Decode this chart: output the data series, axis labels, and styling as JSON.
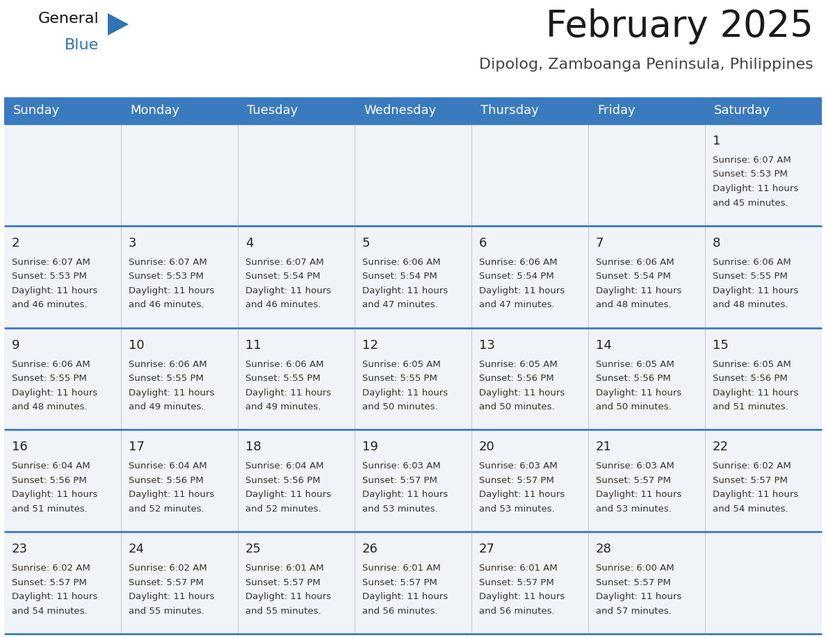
{
  "title": "February 2025",
  "subtitle": "Dipolog, Zamboanga Peninsula, Philippines",
  "days_of_week": [
    "Sunday",
    "Monday",
    "Tuesday",
    "Wednesday",
    "Thursday",
    "Friday",
    "Saturday"
  ],
  "header_bg": "#3a7abf",
  "header_text": "#FFFFFF",
  "divider_color": "#3a7abf",
  "cell_bg": "#f0f3f7",
  "cell_text_color": "#333333",
  "calendar_data": [
    [
      null,
      null,
      null,
      null,
      null,
      null,
      {
        "day": 1,
        "sunrise": "6:07 AM",
        "sunset": "5:53 PM",
        "daylight": "11 hours and 45 minutes."
      }
    ],
    [
      {
        "day": 2,
        "sunrise": "6:07 AM",
        "sunset": "5:53 PM",
        "daylight": "11 hours and 46 minutes."
      },
      {
        "day": 3,
        "sunrise": "6:07 AM",
        "sunset": "5:53 PM",
        "daylight": "11 hours and 46 minutes."
      },
      {
        "day": 4,
        "sunrise": "6:07 AM",
        "sunset": "5:54 PM",
        "daylight": "11 hours and 46 minutes."
      },
      {
        "day": 5,
        "sunrise": "6:06 AM",
        "sunset": "5:54 PM",
        "daylight": "11 hours and 47 minutes."
      },
      {
        "day": 6,
        "sunrise": "6:06 AM",
        "sunset": "5:54 PM",
        "daylight": "11 hours and 47 minutes."
      },
      {
        "day": 7,
        "sunrise": "6:06 AM",
        "sunset": "5:54 PM",
        "daylight": "11 hours and 48 minutes."
      },
      {
        "day": 8,
        "sunrise": "6:06 AM",
        "sunset": "5:55 PM",
        "daylight": "11 hours and 48 minutes."
      }
    ],
    [
      {
        "day": 9,
        "sunrise": "6:06 AM",
        "sunset": "5:55 PM",
        "daylight": "11 hours and 48 minutes."
      },
      {
        "day": 10,
        "sunrise": "6:06 AM",
        "sunset": "5:55 PM",
        "daylight": "11 hours and 49 minutes."
      },
      {
        "day": 11,
        "sunrise": "6:06 AM",
        "sunset": "5:55 PM",
        "daylight": "11 hours and 49 minutes."
      },
      {
        "day": 12,
        "sunrise": "6:05 AM",
        "sunset": "5:55 PM",
        "daylight": "11 hours and 50 minutes."
      },
      {
        "day": 13,
        "sunrise": "6:05 AM",
        "sunset": "5:56 PM",
        "daylight": "11 hours and 50 minutes."
      },
      {
        "day": 14,
        "sunrise": "6:05 AM",
        "sunset": "5:56 PM",
        "daylight": "11 hours and 50 minutes."
      },
      {
        "day": 15,
        "sunrise": "6:05 AM",
        "sunset": "5:56 PM",
        "daylight": "11 hours and 51 minutes."
      }
    ],
    [
      {
        "day": 16,
        "sunrise": "6:04 AM",
        "sunset": "5:56 PM",
        "daylight": "11 hours and 51 minutes."
      },
      {
        "day": 17,
        "sunrise": "6:04 AM",
        "sunset": "5:56 PM",
        "daylight": "11 hours and 52 minutes."
      },
      {
        "day": 18,
        "sunrise": "6:04 AM",
        "sunset": "5:56 PM",
        "daylight": "11 hours and 52 minutes."
      },
      {
        "day": 19,
        "sunrise": "6:03 AM",
        "sunset": "5:57 PM",
        "daylight": "11 hours and 53 minutes."
      },
      {
        "day": 20,
        "sunrise": "6:03 AM",
        "sunset": "5:57 PM",
        "daylight": "11 hours and 53 minutes."
      },
      {
        "day": 21,
        "sunrise": "6:03 AM",
        "sunset": "5:57 PM",
        "daylight": "11 hours and 53 minutes."
      },
      {
        "day": 22,
        "sunrise": "6:02 AM",
        "sunset": "5:57 PM",
        "daylight": "11 hours and 54 minutes."
      }
    ],
    [
      {
        "day": 23,
        "sunrise": "6:02 AM",
        "sunset": "5:57 PM",
        "daylight": "11 hours and 54 minutes."
      },
      {
        "day": 24,
        "sunrise": "6:02 AM",
        "sunset": "5:57 PM",
        "daylight": "11 hours and 55 minutes."
      },
      {
        "day": 25,
        "sunrise": "6:01 AM",
        "sunset": "5:57 PM",
        "daylight": "11 hours and 55 minutes."
      },
      {
        "day": 26,
        "sunrise": "6:01 AM",
        "sunset": "5:57 PM",
        "daylight": "11 hours and 56 minutes."
      },
      {
        "day": 27,
        "sunrise": "6:01 AM",
        "sunset": "5:57 PM",
        "daylight": "11 hours and 56 minutes."
      },
      {
        "day": 28,
        "sunrise": "6:00 AM",
        "sunset": "5:57 PM",
        "daylight": "11 hours and 57 minutes."
      },
      null
    ]
  ],
  "title_fontsize": 38,
  "subtitle_fontsize": 16,
  "header_fontsize": 13,
  "day_num_fontsize": 13,
  "cell_text_fontsize": 9.5
}
